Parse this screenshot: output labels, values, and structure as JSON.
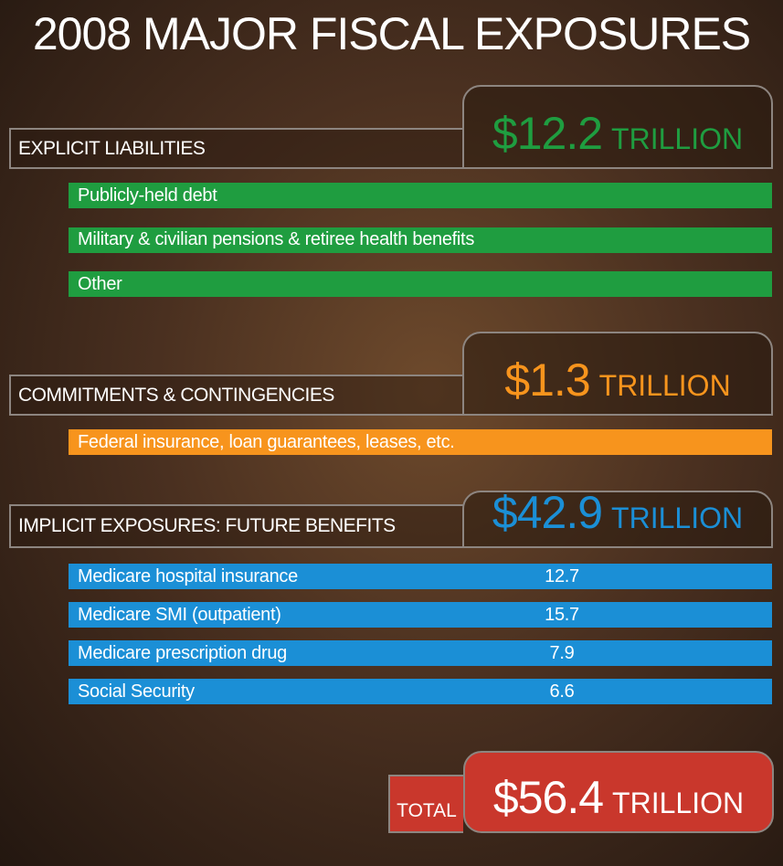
{
  "title": "2008 MAJOR FISCAL EXPOSURES",
  "sections": [
    {
      "label": "EXPLICIT LIABILITIES",
      "amount": "$12.2",
      "unit": "TRILLION",
      "color": "#1f9d40",
      "items": [
        {
          "label": "Publicly-held debt"
        },
        {
          "label": "Military & civilian pensions & retiree health benefits"
        },
        {
          "label": "Other"
        }
      ]
    },
    {
      "label": "COMMITMENTS & CONTINGENCIES",
      "amount": "$1.3",
      "unit": "TRILLION",
      "color": "#f7941d",
      "items": [
        {
          "label": "Federal insurance, loan guarantees, leases, etc."
        }
      ]
    },
    {
      "label": "IMPLICIT EXPOSURES: FUTURE BENEFITS",
      "amount": "$42.9",
      "unit": "TRILLION",
      "color": "#1b8fd6",
      "items": [
        {
          "label": "Medicare hospital insurance",
          "value": 12.7
        },
        {
          "label": "Medicare SMI (outpatient)",
          "value": 15.7
        },
        {
          "label": "Medicare prescription drug",
          "value": 7.9
        },
        {
          "label": "Social Security",
          "value": 6.6
        }
      ]
    }
  ],
  "total": {
    "label": "TOTAL",
    "amount": "$56.4",
    "unit": "TRILLION",
    "color": "#c9372c"
  }
}
